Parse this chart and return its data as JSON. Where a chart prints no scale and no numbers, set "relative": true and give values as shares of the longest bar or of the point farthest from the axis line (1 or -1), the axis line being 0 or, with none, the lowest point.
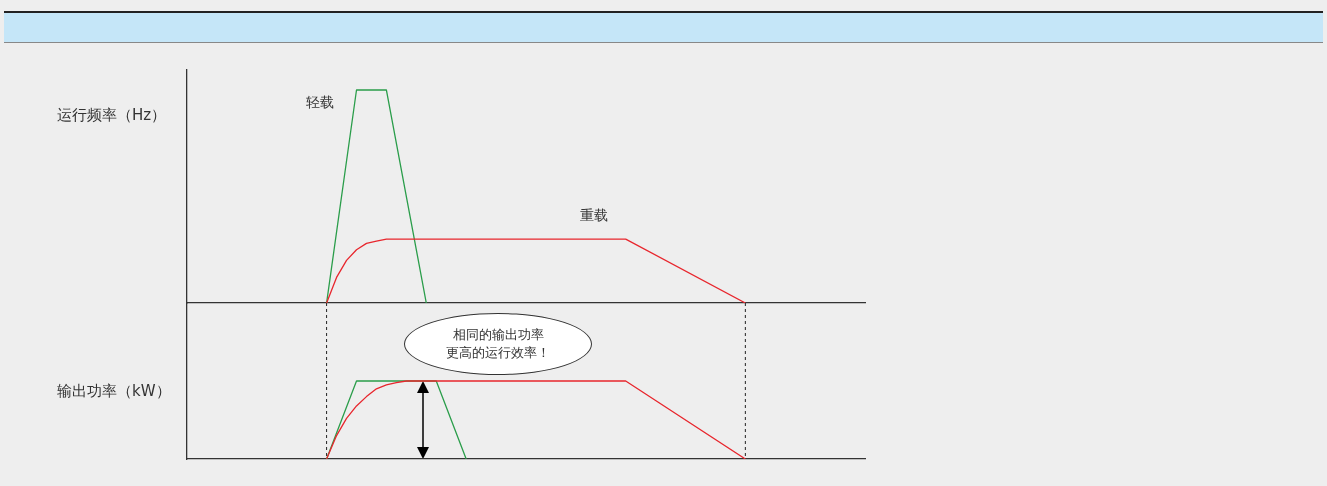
{
  "chart_data": [
    {
      "type": "line",
      "ylabel": "运行频率（Hz）",
      "relative": true,
      "legend": false,
      "grid": false,
      "marker": "none",
      "tick_labels": false,
      "categories": [
        null,
        null,
        null,
        null,
        null,
        null,
        null,
        null,
        null,
        null,
        null,
        null,
        null,
        null,
        null,
        null,
        null,
        null,
        null,
        null,
        null,
        null,
        null,
        null,
        null,
        null,
        null,
        null,
        null,
        null,
        null,
        null,
        null,
        null,
        null,
        null,
        null,
        null,
        null,
        null,
        null,
        null,
        null,
        null,
        null,
        null,
        null,
        null,
        null,
        null,
        null,
        null,
        null,
        null,
        null,
        null,
        null,
        null,
        null,
        null,
        null,
        null,
        null,
        null,
        null,
        null,
        null,
        null,
        null
      ],
      "series": [
        {
          "name": "轻载",
          "color": "#2a9d4a",
          "values": [
            null,
            null,
            null,
            null,
            null,
            null,
            null,
            null,
            null,
            null,
            null,
            null,
            null,
            null,
            0,
            null,
            null,
            1,
            null,
            null,
            1,
            null,
            null,
            null,
            0,
            null,
            null,
            null,
            null,
            null,
            null,
            null,
            null,
            null,
            null,
            null,
            null,
            null,
            null,
            null,
            null,
            null,
            null,
            null,
            null,
            null,
            null,
            null,
            null,
            null,
            null,
            null,
            null,
            null,
            null,
            null,
            null,
            null,
            null,
            null,
            null,
            null,
            null,
            null,
            null,
            null,
            null,
            null,
            null
          ]
        },
        {
          "name": "重载",
          "color": "#e8262d",
          "values": [
            null,
            null,
            null,
            null,
            null,
            null,
            null,
            null,
            null,
            null,
            null,
            null,
            null,
            null,
            0,
            0.12,
            0.2,
            0.25,
            0.28,
            0.29,
            0.3,
            null,
            null,
            null,
            null,
            null,
            null,
            null,
            null,
            null,
            null,
            null,
            null,
            null,
            null,
            null,
            null,
            null,
            null,
            null,
            null,
            null,
            null,
            null,
            0.3,
            null,
            null,
            null,
            null,
            null,
            null,
            null,
            null,
            null,
            null,
            null,
            0,
            null,
            null,
            null,
            null,
            null,
            null,
            null,
            null,
            null,
            null,
            null,
            null
          ]
        }
      ]
    },
    {
      "type": "line",
      "ylabel": "输出功率（kW）",
      "relative": true,
      "legend": false,
      "grid": false,
      "marker": "none",
      "tick_labels": false,
      "annotations": [
        "相同的输出功率",
        "更高的运行效率！"
      ],
      "categories": [
        null,
        null,
        null,
        null,
        null,
        null,
        null,
        null,
        null,
        null,
        null,
        null,
        null,
        null,
        null,
        null,
        null,
        null,
        null,
        null,
        null,
        null,
        null,
        null,
        null,
        null,
        null,
        null,
        null,
        null,
        null,
        null,
        null,
        null,
        null,
        null,
        null,
        null,
        null,
        null,
        null,
        null,
        null,
        null,
        null,
        null,
        null,
        null,
        null,
        null,
        null,
        null,
        null,
        null,
        null,
        null,
        null,
        null,
        null,
        null,
        null,
        null,
        null,
        null,
        null,
        null,
        null,
        null,
        null
      ],
      "series": [
        {
          "color": "#2a9d4a",
          "values": [
            null,
            null,
            null,
            null,
            null,
            null,
            null,
            null,
            null,
            null,
            null,
            null,
            null,
            null,
            0,
            null,
            null,
            1,
            null,
            null,
            null,
            null,
            null,
            null,
            null,
            1,
            null,
            null,
            0,
            null,
            null,
            null,
            null,
            null,
            null,
            null,
            null,
            null,
            null,
            null,
            null,
            null,
            null,
            null,
            null,
            null,
            null,
            null,
            null,
            null,
            null,
            null,
            null,
            null,
            null,
            null,
            null,
            null,
            null,
            null,
            null,
            null,
            null,
            null,
            null,
            null,
            null,
            null,
            null
          ]
        },
        {
          "color": "#e8262d",
          "values": [
            null,
            null,
            null,
            null,
            null,
            null,
            null,
            null,
            null,
            null,
            null,
            null,
            null,
            null,
            0,
            0.3,
            0.52,
            0.68,
            0.8,
            0.9,
            0.95,
            0.98,
            1,
            null,
            null,
            null,
            null,
            null,
            null,
            null,
            null,
            null,
            null,
            null,
            null,
            null,
            null,
            null,
            null,
            null,
            null,
            null,
            null,
            null,
            1,
            null,
            null,
            null,
            null,
            null,
            null,
            null,
            null,
            null,
            null,
            null,
            0,
            null,
            null,
            null,
            null,
            null,
            null,
            null,
            null,
            null,
            null,
            null,
            null
          ]
        }
      ]
    }
  ]
}
